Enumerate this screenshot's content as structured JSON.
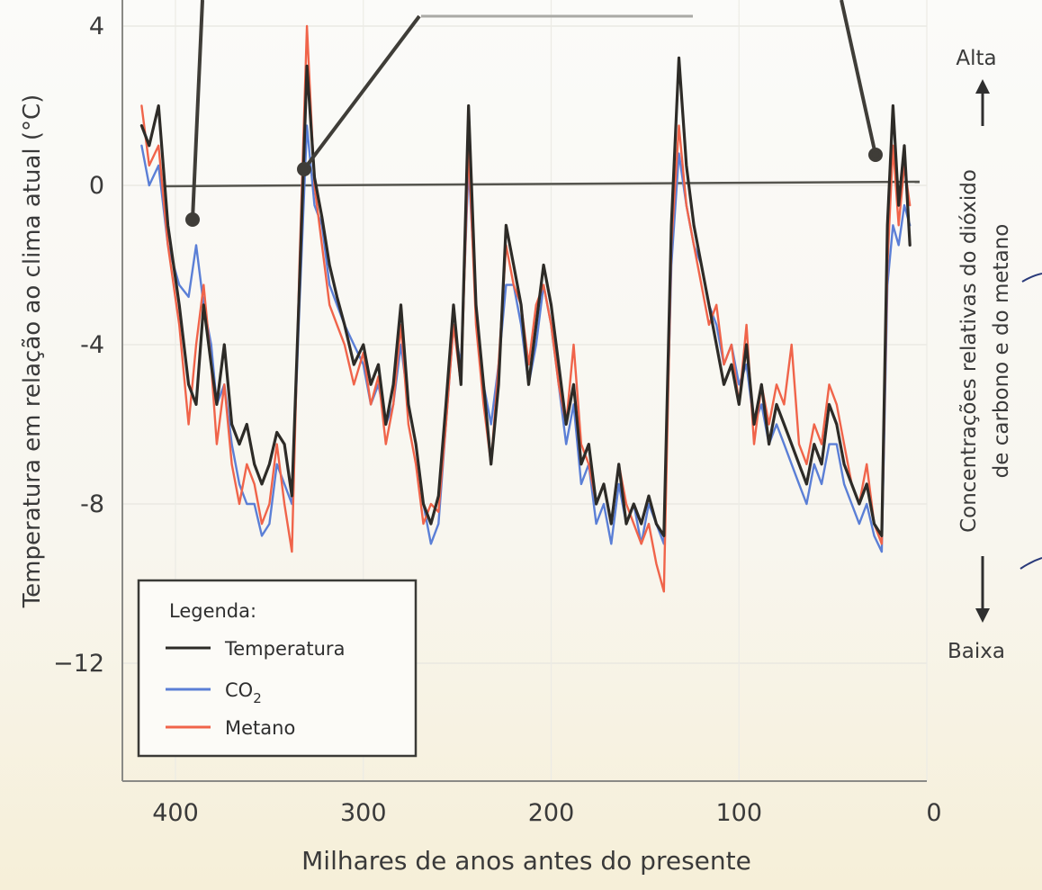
{
  "chart_data": {
    "type": "line",
    "xlabel": "Milhares de anos antes do presente",
    "ylabel": "Temperatura em relação ao clima atual (°C)",
    "right_axis": {
      "label_line1": "Concentrações relativas do dióxido",
      "label_line2": "de carbono e do metano",
      "top_label": "Alta",
      "bottom_label": "Baixa"
    },
    "xlim": [
      420,
      0
    ],
    "ylim": [
      -15,
      4
    ],
    "x_ticks": [
      400,
      300,
      200,
      100,
      0
    ],
    "y_ticks": [
      4,
      0,
      -4,
      -8,
      -12
    ],
    "x_tick_labels": [
      "400",
      "300",
      "200",
      "100",
      "0"
    ],
    "y_tick_labels": [
      "4",
      "0",
      "-4",
      "-8",
      "−12"
    ],
    "reference_line_y": 0,
    "legend": {
      "title": "Legenda:",
      "position": "bottom-left",
      "entries": [
        {
          "label": "Temperatura",
          "color": "#2d2b27"
        },
        {
          "label": "CO",
          "subscript": "2",
          "color": "#5b7fd6"
        },
        {
          "label": "Metano",
          "color": "#f0644a"
        }
      ]
    },
    "series": [
      {
        "name": "Temperatura",
        "color": "#2d2b27",
        "x": [
          418,
          414,
          409,
          404,
          398,
          393,
          389,
          385,
          381,
          378,
          374,
          370,
          366,
          362,
          358,
          354,
          350,
          346,
          342,
          338,
          334,
          330,
          326,
          322,
          318,
          314,
          310,
          305,
          300,
          296,
          292,
          288,
          284,
          280,
          276,
          272,
          268,
          264,
          260,
          256,
          252,
          248,
          244,
          240,
          236,
          232,
          228,
          224,
          220,
          216,
          212,
          208,
          204,
          200,
          196,
          192,
          188,
          184,
          180,
          176,
          172,
          168,
          164,
          160,
          156,
          152,
          148,
          144,
          140,
          136,
          132,
          128,
          124,
          120,
          116,
          112,
          108,
          104,
          100,
          96,
          92,
          88,
          84,
          80,
          76,
          72,
          68,
          64,
          60,
          56,
          52,
          48,
          44,
          40,
          36,
          32,
          28,
          24,
          21,
          18,
          15,
          12,
          9
        ],
        "y": [
          1.5,
          1.0,
          2.0,
          -1.0,
          -3.0,
          -5.0,
          -5.5,
          -3.0,
          -4.5,
          -5.5,
          -4.0,
          -6.0,
          -6.5,
          -6.0,
          -7.0,
          -7.5,
          -7.0,
          -6.2,
          -6.5,
          -7.8,
          -2.5,
          3.0,
          0.2,
          -0.8,
          -2.0,
          -2.8,
          -3.5,
          -4.5,
          -4.0,
          -5.0,
          -4.5,
          -6.0,
          -5.0,
          -3.0,
          -5.5,
          -6.5,
          -8.0,
          -8.5,
          -7.8,
          -5.5,
          -3.0,
          -5.0,
          2.0,
          -3.0,
          -5.0,
          -7.0,
          -5.0,
          -1.0,
          -2.0,
          -3.0,
          -5.0,
          -3.5,
          -2.0,
          -3.0,
          -4.5,
          -6.0,
          -5.0,
          -7.0,
          -6.5,
          -8.0,
          -7.5,
          -8.5,
          -7.0,
          -8.5,
          -8.0,
          -8.5,
          -7.8,
          -8.5,
          -8.8,
          -1.0,
          3.2,
          0.5,
          -1.0,
          -2.0,
          -3.0,
          -4.0,
          -5.0,
          -4.5,
          -5.5,
          -4.0,
          -6.0,
          -5.0,
          -6.5,
          -5.5,
          -6.0,
          -6.5,
          -7.0,
          -7.5,
          -6.5,
          -7.0,
          -5.5,
          -6.0,
          -7.0,
          -7.5,
          -8.0,
          -7.5,
          -8.5,
          -8.8,
          -1.0,
          2.0,
          -0.5,
          1.0,
          -1.5
        ]
      },
      {
        "name": "CO2",
        "color": "#5b7fd6",
        "x": [
          418,
          414,
          409,
          404,
          398,
          393,
          389,
          385,
          381,
          378,
          374,
          370,
          366,
          362,
          358,
          354,
          350,
          346,
          342,
          338,
          334,
          330,
          326,
          322,
          318,
          314,
          310,
          305,
          300,
          296,
          292,
          288,
          284,
          280,
          276,
          272,
          268,
          264,
          260,
          256,
          252,
          248,
          244,
          240,
          236,
          232,
          228,
          224,
          220,
          216,
          212,
          208,
          204,
          200,
          196,
          192,
          188,
          184,
          180,
          176,
          172,
          168,
          164,
          160,
          156,
          152,
          148,
          144,
          140,
          136,
          132,
          128,
          124,
          120,
          116,
          112,
          108,
          104,
          100,
          96,
          92,
          88,
          84,
          80,
          76,
          72,
          68,
          64,
          60,
          56,
          52,
          48,
          44,
          40,
          36,
          32,
          28,
          24,
          21,
          18,
          15,
          12,
          9
        ],
        "y": [
          1.0,
          0.0,
          0.5,
          -1.5,
          -2.5,
          -2.8,
          -1.5,
          -3.0,
          -4.0,
          -5.5,
          -5.0,
          -6.5,
          -7.5,
          -8.0,
          -8.0,
          -8.8,
          -8.5,
          -7.0,
          -7.5,
          -8.0,
          -3.0,
          1.5,
          -0.5,
          -1.0,
          -2.5,
          -3.0,
          -3.5,
          -4.0,
          -4.5,
          -5.5,
          -5.0,
          -6.0,
          -5.5,
          -4.0,
          -5.5,
          -6.5,
          -8.0,
          -9.0,
          -8.5,
          -6.0,
          -3.5,
          -4.5,
          0.5,
          -3.0,
          -5.0,
          -6.0,
          -4.5,
          -2.5,
          -2.5,
          -3.5,
          -5.0,
          -4.0,
          -2.5,
          -3.5,
          -5.0,
          -6.5,
          -5.5,
          -7.5,
          -7.0,
          -8.5,
          -8.0,
          -9.0,
          -7.5,
          -8.5,
          -8.0,
          -9.0,
          -8.0,
          -8.5,
          -9.0,
          -2.0,
          0.8,
          -0.5,
          -1.5,
          -2.0,
          -3.0,
          -3.5,
          -4.5,
          -4.0,
          -5.0,
          -4.5,
          -6.0,
          -5.5,
          -6.5,
          -6.0,
          -6.5,
          -7.0,
          -7.5,
          -8.0,
          -7.0,
          -7.5,
          -6.5,
          -6.5,
          -7.5,
          -8.0,
          -8.5,
          -8.0,
          -8.8,
          -9.2,
          -2.5,
          -1.0,
          -1.5,
          -0.5,
          -1.0
        ]
      },
      {
        "name": "Metano",
        "color": "#f0644a",
        "x": [
          418,
          414,
          409,
          404,
          398,
          393,
          389,
          385,
          381,
          378,
          374,
          370,
          366,
          362,
          358,
          354,
          350,
          346,
          342,
          338,
          334,
          330,
          326,
          322,
          318,
          314,
          310,
          305,
          300,
          296,
          292,
          288,
          284,
          280,
          276,
          272,
          268,
          264,
          260,
          256,
          252,
          248,
          244,
          240,
          236,
          232,
          228,
          224,
          220,
          216,
          212,
          208,
          204,
          200,
          196,
          192,
          188,
          184,
          180,
          176,
          172,
          168,
          164,
          160,
          156,
          152,
          148,
          144,
          140,
          136,
          132,
          128,
          124,
          120,
          116,
          112,
          108,
          104,
          100,
          96,
          92,
          88,
          84,
          80,
          76,
          72,
          68,
          64,
          60,
          56,
          52,
          48,
          44,
          40,
          36,
          32,
          28,
          24,
          21,
          18,
          15,
          12,
          9
        ],
        "y": [
          2.0,
          0.5,
          1.0,
          -1.5,
          -3.5,
          -6.0,
          -4.0,
          -2.5,
          -4.5,
          -6.5,
          -5.0,
          -7.0,
          -8.0,
          -7.0,
          -7.5,
          -8.5,
          -8.0,
          -6.5,
          -8.0,
          -9.2,
          -2.0,
          4.0,
          0.0,
          -1.5,
          -3.0,
          -3.5,
          -4.0,
          -5.0,
          -4.2,
          -5.5,
          -4.8,
          -6.5,
          -5.5,
          -3.5,
          -6.0,
          -7.0,
          -8.5,
          -8.0,
          -8.2,
          -6.0,
          -3.5,
          -5.0,
          1.0,
          -3.5,
          -5.5,
          -7.0,
          -4.5,
          -1.5,
          -2.5,
          -3.0,
          -4.5,
          -3.0,
          -2.5,
          -3.5,
          -5.0,
          -6.0,
          -4.0,
          -6.5,
          -7.0,
          -8.0,
          -7.5,
          -8.5,
          -7.0,
          -8.0,
          -8.5,
          -9.0,
          -8.5,
          -9.5,
          -10.2,
          -1.5,
          1.5,
          -0.5,
          -1.5,
          -2.5,
          -3.5,
          -3.0,
          -4.5,
          -4.0,
          -5.5,
          -3.5,
          -6.5,
          -5.0,
          -6.0,
          -5.0,
          -5.5,
          -4.0,
          -6.5,
          -7.0,
          -6.0,
          -6.5,
          -5.0,
          -5.5,
          -6.5,
          -7.5,
          -8.0,
          -7.0,
          -8.5,
          -9.0,
          -2.0,
          1.0,
          -1.0,
          0.5,
          -0.5
        ]
      }
    ]
  }
}
